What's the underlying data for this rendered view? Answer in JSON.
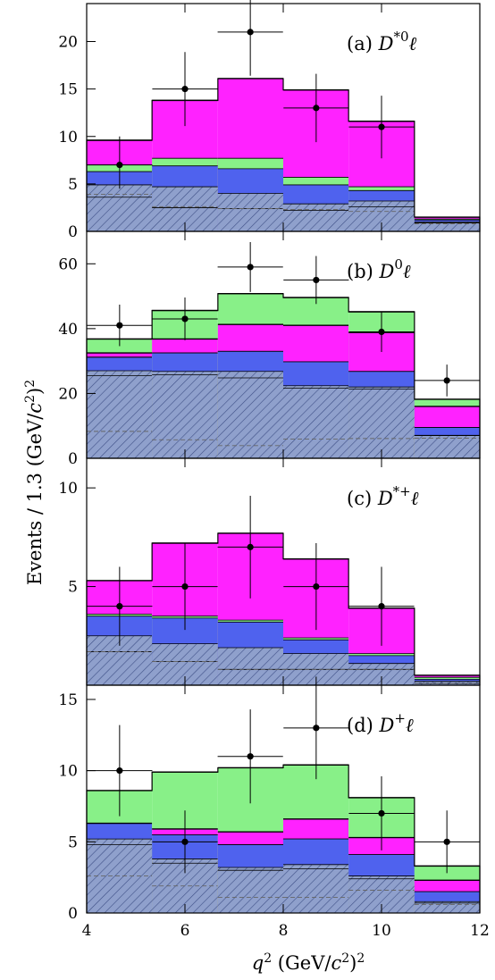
{
  "figure": {
    "xlabel": "q²  (GeV/c²)²",
    "ylabel": "Events / 1.3 (GeV/c²)²",
    "x_tick_labels": [
      "4",
      "6",
      "8",
      "10",
      "12"
    ]
  },
  "colors": {
    "magenta": "#ff22ff",
    "green": "#88f088",
    "blue": "#4f62ee",
    "hatch_fill": "#8fa0cc",
    "hatch_line": "#3e4f86",
    "yellow": "#f7e12c",
    "data": "#000000"
  },
  "chart_data": [
    {
      "type": "histogram",
      "panel": "a",
      "label": "(a) D*0ℓ",
      "label_parts": {
        "prefix": "(a) ",
        "main": "D",
        "sup": "*0",
        "suffix": "ℓ"
      },
      "bin_edges": [
        4.0,
        5.33,
        6.67,
        8.0,
        9.33,
        10.67,
        12.0
      ],
      "ylim": [
        0,
        24
      ],
      "y_ticks": [
        0,
        5,
        10,
        15,
        20
      ],
      "y_tick_labels": [
        "0",
        "5",
        "10",
        "15",
        "20"
      ],
      "stack_tops": {
        "hatched": [
          3.6,
          2.5,
          2.4,
          2.2,
          2.6,
          0.9
        ],
        "yellow": [
          3.6,
          2.5,
          2.4,
          2.2,
          2.6,
          0.9
        ],
        "blue_hatched": [
          4.9,
          4.7,
          4.0,
          2.9,
          3.2,
          1.0
        ],
        "blue": [
          6.3,
          6.9,
          6.6,
          4.9,
          4.3,
          1.2
        ],
        "green": [
          7.0,
          7.7,
          7.7,
          5.7,
          4.7,
          1.3
        ],
        "magenta": [
          9.6,
          13.8,
          16.1,
          14.9,
          11.6,
          1.5
        ]
      },
      "dashed": [
        3.9,
        2.6,
        2.4,
        2.3,
        2.1,
        0.8
      ],
      "data": [
        {
          "x": 4.67,
          "y": 7,
          "yerr": [
            2.5,
            3.0
          ]
        },
        {
          "x": 6.0,
          "y": 15,
          "yerr": [
            3.9,
            3.9
          ]
        },
        {
          "x": 7.33,
          "y": 21,
          "yerr": [
            4.6,
            4.6
          ]
        },
        {
          "x": 8.67,
          "y": 13,
          "yerr": [
            3.6,
            3.6
          ]
        },
        {
          "x": 10.0,
          "y": 11,
          "yerr": [
            3.3,
            3.3
          ]
        }
      ]
    },
    {
      "type": "histogram",
      "panel": "b",
      "label": "(b) D0ℓ",
      "label_parts": {
        "prefix": "(b) ",
        "main": "D",
        "sup": "0",
        "suffix": "ℓ"
      },
      "bin_edges": [
        4.0,
        5.33,
        6.67,
        8.0,
        9.33,
        10.67,
        12.0
      ],
      "ylim": [
        0,
        70
      ],
      "y_ticks": [
        0,
        20,
        40,
        60
      ],
      "y_tick_labels": [
        "0",
        "20",
        "40",
        "60"
      ],
      "stack_tops": {
        "hatched": [
          25.5,
          25.8,
          24.8,
          21.6,
          21.4,
          7.0
        ],
        "yellow": [
          27.0,
          26.8,
          26.8,
          22.4,
          22.0,
          7.1
        ],
        "blue_hatched": [
          27.0,
          26.8,
          26.8,
          22.4,
          22.0,
          7.1
        ],
        "blue": [
          31.2,
          32.5,
          33.0,
          29.8,
          26.8,
          9.5
        ],
        "green": [
          31.2,
          32.5,
          33.0,
          29.8,
          26.8,
          9.5
        ],
        "magenta": [
          32.5,
          36.8,
          41.3,
          41.0,
          38.8,
          16.0
        ],
        "green_top": [
          36.8,
          45.6,
          50.8,
          49.6,
          45.2,
          18.2
        ]
      },
      "dashed": [
        8.3,
        5.7,
        3.9,
        5.9,
        6.1,
        6.2
      ],
      "data": [
        {
          "x": 4.67,
          "y": 41,
          "yerr": [
            6.4,
            6.4
          ]
        },
        {
          "x": 6.0,
          "y": 43,
          "yerr": [
            6.6,
            6.6
          ]
        },
        {
          "x": 7.33,
          "y": 59,
          "yerr": [
            7.7,
            7.7
          ]
        },
        {
          "x": 8.67,
          "y": 55,
          "yerr": [
            7.4,
            7.4
          ]
        },
        {
          "x": 10.0,
          "y": 39,
          "yerr": [
            6.2,
            6.2
          ]
        },
        {
          "x": 11.33,
          "y": 24,
          "yerr": [
            4.9,
            4.9
          ]
        }
      ]
    },
    {
      "type": "histogram",
      "panel": "c",
      "label": "(c) D*+ℓ",
      "label_parts": {
        "prefix": "(c) ",
        "main": "D",
        "sup": "*+",
        "suffix": "ℓ"
      },
      "bin_edges": [
        4.0,
        5.33,
        6.67,
        8.0,
        9.33,
        10.67,
        12.0
      ],
      "ylim": [
        0,
        11.5
      ],
      "y_ticks": [
        5,
        10
      ],
      "y_tick_labels": [
        "5",
        "10"
      ],
      "stack_tops": {
        "hatched": [
          1.7,
          1.2,
          0.8,
          0.8,
          0.8,
          0.1
        ],
        "yellow": [
          1.7,
          1.2,
          0.8,
          0.8,
          0.8,
          0.1
        ],
        "blue_hatched": [
          2.5,
          2.1,
          1.9,
          1.6,
          1.1,
          0.2
        ],
        "blue": [
          3.5,
          3.4,
          3.2,
          2.3,
          1.5,
          0.3
        ],
        "green": [
          3.6,
          3.5,
          3.3,
          2.4,
          1.6,
          0.4
        ],
        "magenta": [
          5.3,
          7.2,
          7.7,
          6.4,
          3.9,
          0.5
        ]
      },
      "dashed": [
        1.7,
        1.2,
        0.8,
        0.8,
        0.8,
        0.1
      ],
      "data": [
        {
          "x": 4.67,
          "y": 4,
          "yerr": [
            2.0,
            2.0
          ]
        },
        {
          "x": 6.0,
          "y": 5,
          "yerr": [
            2.2,
            2.2
          ]
        },
        {
          "x": 7.33,
          "y": 7,
          "yerr": [
            2.6,
            2.6
          ]
        },
        {
          "x": 8.67,
          "y": 5,
          "yerr": [
            2.2,
            2.2
          ]
        },
        {
          "x": 10.0,
          "y": 4,
          "yerr": [
            2.0,
            2.0
          ]
        }
      ]
    },
    {
      "type": "histogram",
      "panel": "d",
      "label": "(d) D+ℓ",
      "label_parts": {
        "prefix": "(d) ",
        "main": "D",
        "sup": "+",
        "suffix": "ℓ"
      },
      "bin_edges": [
        4.0,
        5.33,
        6.67,
        8.0,
        9.33,
        10.67,
        12.0
      ],
      "ylim": [
        0,
        16
      ],
      "y_ticks": [
        0,
        5,
        10,
        15
      ],
      "y_tick_labels": [
        "0",
        "5",
        "10",
        "15"
      ],
      "stack_tops": {
        "hatched": [
          4.8,
          3.5,
          3.0,
          3.1,
          2.4,
          0.7
        ],
        "yellow": [
          5.2,
          3.8,
          3.2,
          3.4,
          2.6,
          0.8
        ],
        "blue_hatched": [
          5.2,
          3.8,
          3.2,
          3.4,
          2.6,
          0.8
        ],
        "blue": [
          6.3,
          5.5,
          4.8,
          5.2,
          4.1,
          1.5
        ],
        "green": [
          6.3,
          5.5,
          4.8,
          5.2,
          4.1,
          1.5
        ],
        "magenta": [
          6.3,
          5.9,
          5.7,
          6.6,
          5.3,
          2.3
        ],
        "green_top": [
          8.6,
          9.9,
          10.2,
          10.4,
          8.1,
          3.3
        ]
      },
      "dashed": [
        2.6,
        1.9,
        1.1,
        1.1,
        1.6,
        0.6
      ],
      "data": [
        {
          "x": 4.67,
          "y": 10,
          "yerr": [
            3.2,
            3.2
          ]
        },
        {
          "x": 6.0,
          "y": 5,
          "yerr": [
            2.2,
            2.2
          ]
        },
        {
          "x": 7.33,
          "y": 11,
          "yerr": [
            3.3,
            3.3
          ]
        },
        {
          "x": 8.67,
          "y": 13,
          "yerr": [
            3.6,
            3.6
          ]
        },
        {
          "x": 10.0,
          "y": 7,
          "yerr": [
            2.6,
            2.6
          ]
        },
        {
          "x": 11.33,
          "y": 5,
          "yerr": [
            2.2,
            2.2
          ]
        }
      ]
    }
  ]
}
